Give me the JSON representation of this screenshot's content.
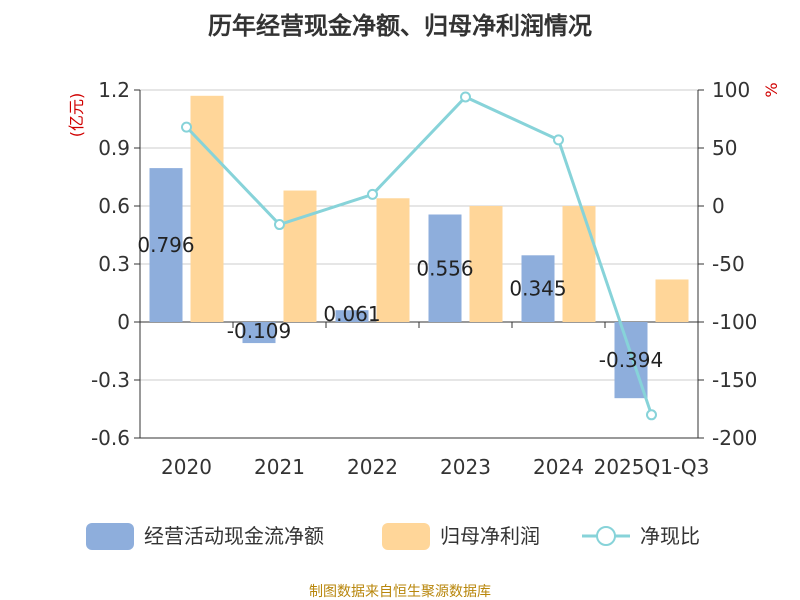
{
  "chart_data": {
    "type": "bar",
    "title": "历年经营现金净额、归母净利润情况",
    "categories": [
      "2020",
      "2021",
      "2022",
      "2023",
      "2024",
      "2025Q1-Q3"
    ],
    "left_unit": "(亿元)",
    "right_unit": "%",
    "ylim_left": [
      -0.6,
      1.2
    ],
    "yticks_left": [
      "1.2",
      "0.9",
      "0.6",
      "0.3",
      "0",
      "-0.3",
      "-0.6"
    ],
    "ylim_right": [
      -200,
      100
    ],
    "yticks_right": [
      "100",
      "50",
      "0",
      "-50",
      "-100",
      "-150",
      "-200"
    ],
    "grid": true,
    "legend_position": "bottom",
    "series": [
      {
        "name": "经营活动现金流净额",
        "axis": "left",
        "color": "#8eaedc",
        "values": [
          0.796,
          -0.109,
          0.061,
          0.556,
          0.345,
          -0.394
        ],
        "labels": [
          "0.796",
          "-0.109",
          "0.061",
          "0.556",
          "0.345",
          "-0.394"
        ]
      },
      {
        "name": "归母净利润",
        "axis": "left",
        "color": "#ffd699",
        "values": [
          1.17,
          0.68,
          0.64,
          0.6,
          0.6,
          0.22
        ]
      },
      {
        "name": "净现比",
        "axis": "right",
        "type": "line",
        "color": "#87d3d9",
        "values": [
          68,
          -16,
          10,
          94,
          57,
          -180
        ]
      }
    ]
  },
  "source": "制图数据来自恒生聚源数据库"
}
